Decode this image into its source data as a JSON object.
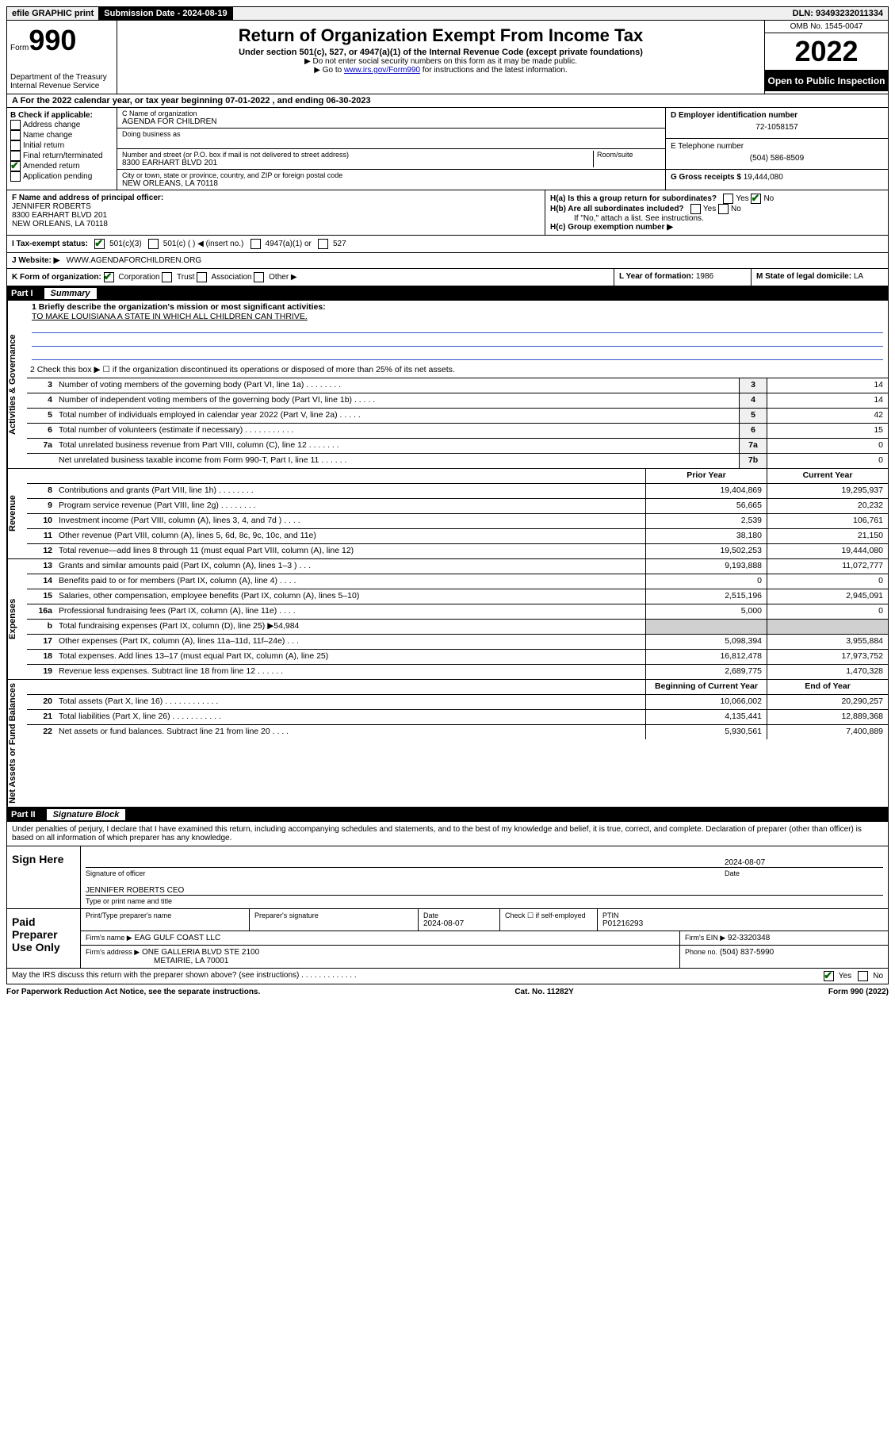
{
  "topbar": {
    "efile": "efile GRAPHIC print",
    "submission_label": "Submission Date - 2024-08-19",
    "dln": "DLN: 93493232011334"
  },
  "header": {
    "form_prefix": "Form",
    "form_number": "990",
    "dept": "Department of the Treasury",
    "irs": "Internal Revenue Service",
    "title": "Return of Organization Exempt From Income Tax",
    "subtitle": "Under section 501(c), 527, or 4947(a)(1) of the Internal Revenue Code (except private foundations)",
    "note1": "▶ Do not enter social security numbers on this form as it may be made public.",
    "note2_pre": "▶ Go to ",
    "note2_link": "www.irs.gov/Form990",
    "note2_post": " for instructions and the latest information.",
    "omb": "OMB No. 1545-0047",
    "year": "2022",
    "open": "Open to Public Inspection"
  },
  "line_a": "A For the 2022 calendar year, or tax year beginning 07-01-2022   , and ending 06-30-2023",
  "box_b": {
    "label": "B Check if applicable:",
    "items": [
      "Address change",
      "Name change",
      "Initial return",
      "Final return/terminated",
      "Amended return",
      "Application pending"
    ],
    "checked_index": 4
  },
  "box_c": {
    "name_label": "C Name of organization",
    "name": "AGENDA FOR CHILDREN",
    "dba_label": "Doing business as",
    "addr_label": "Number and street (or P.O. box if mail is not delivered to street address)",
    "room_label": "Room/suite",
    "addr": "8300 EARHART BLVD 201",
    "city_label": "City or town, state or province, country, and ZIP or foreign postal code",
    "city": "NEW ORLEANS, LA  70118"
  },
  "box_d": {
    "label": "D Employer identification number",
    "value": "72-1058157"
  },
  "box_e": {
    "label": "E Telephone number",
    "value": "(504) 586-8509"
  },
  "box_g": {
    "label": "G Gross receipts $",
    "value": "19,444,080"
  },
  "box_f": {
    "label": "F Name and address of principal officer:",
    "name": "JENNIFER ROBERTS",
    "addr1": "8300 EARHART BLVD 201",
    "addr2": "NEW ORLEANS, LA  70118"
  },
  "box_h": {
    "a_label": "H(a)  Is this a group return for subordinates?",
    "a_no": true,
    "b_label": "H(b)  Are all subordinates included?",
    "b_note": "If \"No,\" attach a list. See instructions.",
    "c_label": "H(c)  Group exemption number ▶"
  },
  "box_i": {
    "label": "I   Tax-exempt status:",
    "opt1": "501(c)(3)",
    "opt2": "501(c) (  ) ◀ (insert no.)",
    "opt3": "4947(a)(1) or",
    "opt4": "527",
    "checked": 0
  },
  "box_j": {
    "label": "J   Website: ▶",
    "value": "WWW.AGENDAFORCHILDREN.ORG"
  },
  "box_k": {
    "label": "K Form of organization:",
    "opts": [
      "Corporation",
      "Trust",
      "Association",
      "Other ▶"
    ],
    "checked": 0
  },
  "box_l": {
    "label": "L Year of formation:",
    "value": "1986"
  },
  "box_m": {
    "label": "M State of legal domicile:",
    "value": "LA"
  },
  "part1": {
    "label": "Part I",
    "title": "Summary"
  },
  "mission": {
    "q": "1   Briefly describe the organization's mission or most significant activities:",
    "text": "TO MAKE LOUISIANA A STATE IN WHICH ALL CHILDREN CAN THRIVE."
  },
  "line2": "2   Check this box ▶ ☐  if the organization discontinued its operations or disposed of more than 25% of its net assets.",
  "gov_rows": [
    {
      "n": "3",
      "d": "Number of voting members of the governing body (Part VI, line 1a)   .   .   .   .   .   .   .   .",
      "b": "3",
      "v": "14"
    },
    {
      "n": "4",
      "d": "Number of independent voting members of the governing body (Part VI, line 1b)  .   .   .   .   .",
      "b": "4",
      "v": "14"
    },
    {
      "n": "5",
      "d": "Total number of individuals employed in calendar year 2022 (Part V, line 2a)   .   .   .   .   .",
      "b": "5",
      "v": "42"
    },
    {
      "n": "6",
      "d": "Total number of volunteers (estimate if necessary)   .   .   .   .   .   .   .   .   .   .   .",
      "b": "6",
      "v": "15"
    },
    {
      "n": "7a",
      "d": "Total unrelated business revenue from Part VIII, column (C), line 12  .   .   .   .   .   .   .",
      "b": "7a",
      "v": "0"
    },
    {
      "n": "",
      "d": "Net unrelated business taxable income from Form 990-T, Part I, line 11   .   .   .   .   .   .",
      "b": "7b",
      "v": "0"
    }
  ],
  "rev_header": {
    "prior": "Prior Year",
    "current": "Current Year"
  },
  "rev_rows": [
    {
      "n": "8",
      "d": "Contributions and grants (Part VIII, line 1h)   .   .   .   .   .   .   .   .",
      "p": "19,404,869",
      "c": "19,295,937"
    },
    {
      "n": "9",
      "d": "Program service revenue (Part VIII, line 2g)   .   .   .   .   .   .   .   .",
      "p": "56,665",
      "c": "20,232"
    },
    {
      "n": "10",
      "d": "Investment income (Part VIII, column (A), lines 3, 4, and 7d )   .   .   .   .",
      "p": "2,539",
      "c": "106,761"
    },
    {
      "n": "11",
      "d": "Other revenue (Part VIII, column (A), lines 5, 6d, 8c, 9c, 10c, and 11e)",
      "p": "38,180",
      "c": "21,150"
    },
    {
      "n": "12",
      "d": "Total revenue—add lines 8 through 11 (must equal Part VIII, column (A), line 12)",
      "p": "19,502,253",
      "c": "19,444,080"
    }
  ],
  "exp_rows": [
    {
      "n": "13",
      "d": "Grants and similar amounts paid (Part IX, column (A), lines 1–3 )   .   .   .",
      "p": "9,193,888",
      "c": "11,072,777"
    },
    {
      "n": "14",
      "d": "Benefits paid to or for members (Part IX, column (A), line 4)   .   .   .   .",
      "p": "0",
      "c": "0"
    },
    {
      "n": "15",
      "d": "Salaries, other compensation, employee benefits (Part IX, column (A), lines 5–10)",
      "p": "2,515,196",
      "c": "2,945,091"
    },
    {
      "n": "16a",
      "d": "Professional fundraising fees (Part IX, column (A), line 11e)   .   .   .   .",
      "p": "5,000",
      "c": "0"
    },
    {
      "n": "b",
      "d": "Total fundraising expenses (Part IX, column (D), line 25) ▶54,984",
      "p": "",
      "c": "",
      "shaded": true
    },
    {
      "n": "17",
      "d": "Other expenses (Part IX, column (A), lines 11a–11d, 11f–24e)   .   .   .",
      "p": "5,098,394",
      "c": "3,955,884"
    },
    {
      "n": "18",
      "d": "Total expenses. Add lines 13–17 (must equal Part IX, column (A), line 25)",
      "p": "16,812,478",
      "c": "17,973,752"
    },
    {
      "n": "19",
      "d": "Revenue less expenses. Subtract line 18 from line 12   .   .   .   .   .   .",
      "p": "2,689,775",
      "c": "1,470,328"
    }
  ],
  "net_header": {
    "prior": "Beginning of Current Year",
    "current": "End of Year"
  },
  "net_rows": [
    {
      "n": "20",
      "d": "Total assets (Part X, line 16)  .   .   .   .   .   .   .   .   .   .   .   .",
      "p": "10,066,002",
      "c": "20,290,257"
    },
    {
      "n": "21",
      "d": "Total liabilities (Part X, line 26)  .   .   .   .   .   .   .   .   .   .   .",
      "p": "4,135,441",
      "c": "12,889,368"
    },
    {
      "n": "22",
      "d": "Net assets or fund balances. Subtract line 21 from line 20   .   .   .   .",
      "p": "5,930,561",
      "c": "7,400,889"
    }
  ],
  "part2": {
    "label": "Part II",
    "title": "Signature Block"
  },
  "sig": {
    "decl": "Under penalties of perjury, I declare that I have examined this return, including accompanying schedules and statements, and to the best of my knowledge and belief, it is true, correct, and complete. Declaration of preparer (other than officer) is based on all information of which preparer has any knowledge.",
    "sign_here": "Sign Here",
    "sig_officer": "Signature of officer",
    "date_label": "Date",
    "date": "2024-08-07",
    "name": "JENNIFER ROBERTS CEO",
    "name_label": "Type or print name and title"
  },
  "paid": {
    "title": "Paid Preparer Use Only",
    "h1": "Print/Type preparer's name",
    "h2": "Preparer's signature",
    "h3": "Date",
    "h3v": "2024-08-07",
    "h4": "Check ☐ if self-employed",
    "h5": "PTIN",
    "h5v": "P01216293",
    "firm_name_label": "Firm's name    ▶",
    "firm_name": "EAG GULF COAST LLC",
    "firm_ein_label": "Firm's EIN ▶",
    "firm_ein": "92-3320348",
    "firm_addr_label": "Firm's address ▶",
    "firm_addr1": "ONE GALLERIA BLVD STE 2100",
    "firm_addr2": "METAIRIE, LA  70001",
    "phone_label": "Phone no.",
    "phone": "(504) 837-5990"
  },
  "discuss": {
    "q": "May the IRS discuss this return with the preparer shown above? (see instructions)   .   .   .   .   .   .   .   .   .   .   .   .   .",
    "yes": true
  },
  "footer": {
    "left": "For Paperwork Reduction Act Notice, see the separate instructions.",
    "mid": "Cat. No. 11282Y",
    "right": "Form 990 (2022)"
  },
  "vlabels": {
    "gov": "Activities & Governance",
    "rev": "Revenue",
    "exp": "Expenses",
    "net": "Net Assets or Fund Balances"
  }
}
